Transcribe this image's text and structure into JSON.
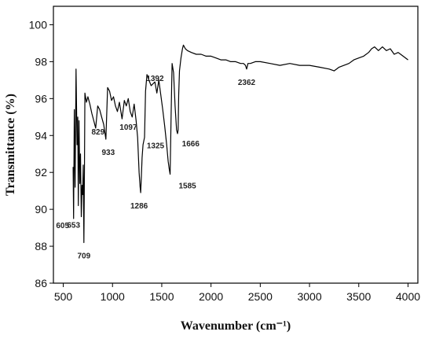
{
  "chart_data": {
    "type": "line",
    "title": "",
    "xlabel": "Wavenumber (cm⁻¹)",
    "ylabel": "Transmittance (%)",
    "xlim": [
      400,
      4100
    ],
    "ylim": [
      86,
      101
    ],
    "xticks": [
      "500",
      "1000",
      "1500",
      "2000",
      "2500",
      "3000",
      "3500",
      "4000"
    ],
    "yticks": [
      "86",
      "88",
      "90",
      "92",
      "94",
      "96",
      "98",
      "100"
    ],
    "grid": false,
    "series": [
      {
        "color": "#000000",
        "x": [
          600,
          605,
          612,
          620,
          630,
          640,
          647,
          653,
          660,
          668,
          675,
          683,
          690,
          697,
          703,
          709,
          715,
          720,
          735,
          750,
          770,
          790,
          810,
          829,
          850,
          870,
          890,
          910,
          933,
          950,
          970,
          990,
          1010,
          1030,
          1050,
          1070,
          1097,
          1120,
          1140,
          1160,
          1180,
          1200,
          1220,
          1240,
          1255,
          1270,
          1280,
          1286,
          1292,
          1300,
          1310,
          1325,
          1335,
          1350,
          1370,
          1392,
          1410,
          1430,
          1450,
          1470,
          1490,
          1510,
          1530,
          1550,
          1565,
          1575,
          1585,
          1595,
          1605,
          1620,
          1635,
          1650,
          1660,
          1666,
          1672,
          1680,
          1695,
          1710,
          1720,
          1740,
          1760,
          1800,
          1850,
          1900,
          1950,
          2000,
          2050,
          2100,
          2150,
          2200,
          2250,
          2300,
          2330,
          2350,
          2362,
          2375,
          2400,
          2450,
          2500,
          2600,
          2700,
          2800,
          2900,
          3000,
          3100,
          3200,
          3250,
          3300,
          3350,
          3400,
          3450,
          3500,
          3550,
          3600,
          3630,
          3660,
          3700,
          3740,
          3780,
          3820,
          3860,
          3900,
          3950,
          4000
        ],
        "y": [
          92.3,
          89.5,
          95.4,
          91.2,
          97.6,
          93.5,
          95.0,
          90.2,
          94.8,
          91.4,
          93.0,
          89.6,
          91.3,
          90.8,
          92.4,
          88.2,
          92.0,
          96.3,
          95.8,
          96.1,
          95.7,
          95.2,
          94.8,
          94.4,
          95.6,
          95.4,
          95.0,
          94.6,
          93.8,
          96.6,
          96.4,
          95.9,
          96.1,
          95.6,
          95.3,
          95.8,
          94.9,
          95.9,
          95.6,
          96.0,
          95.3,
          95.0,
          95.7,
          94.8,
          93.9,
          92.0,
          91.2,
          90.9,
          91.7,
          92.8,
          93.5,
          93.9,
          96.4,
          97.3,
          97.0,
          96.7,
          96.8,
          96.9,
          96.3,
          97.0,
          96.2,
          95.4,
          94.5,
          93.5,
          92.6,
          92.2,
          91.9,
          95.2,
          97.9,
          97.4,
          95.6,
          94.3,
          94.1,
          94.3,
          96.2,
          97.5,
          98.2,
          98.7,
          98.9,
          98.7,
          98.6,
          98.5,
          98.4,
          98.4,
          98.3,
          98.3,
          98.2,
          98.1,
          98.1,
          98.0,
          98.0,
          97.9,
          97.9,
          97.8,
          97.6,
          97.9,
          97.9,
          98.0,
          98.0,
          97.9,
          97.8,
          97.9,
          97.8,
          97.8,
          97.7,
          97.6,
          97.5,
          97.7,
          97.8,
          97.9,
          98.1,
          98.2,
          98.3,
          98.5,
          98.7,
          98.8,
          98.6,
          98.8,
          98.6,
          98.7,
          98.4,
          98.5,
          98.3,
          98.1
        ]
      }
    ],
    "annotations": [
      {
        "text": "605",
        "x": 605,
        "y": 89.5
      },
      {
        "text": "653",
        "x": 653,
        "y": 90.2
      },
      {
        "text": "709",
        "x": 709,
        "y": 88.2
      },
      {
        "text": "829",
        "x": 829,
        "y": 94.4
      },
      {
        "text": "933",
        "x": 933,
        "y": 93.8
      },
      {
        "text": "1097",
        "x": 1097,
        "y": 94.9
      },
      {
        "text": "1286",
        "x": 1286,
        "y": 90.9
      },
      {
        "text": "1325",
        "x": 1325,
        "y": 93.9
      },
      {
        "text": "1392",
        "x": 1392,
        "y": 96.7
      },
      {
        "text": "1585",
        "x": 1585,
        "y": 91.9
      },
      {
        "text": "1666",
        "x": 1666,
        "y": 94.1
      },
      {
        "text": "2362",
        "x": 2362,
        "y": 97.6
      }
    ]
  }
}
